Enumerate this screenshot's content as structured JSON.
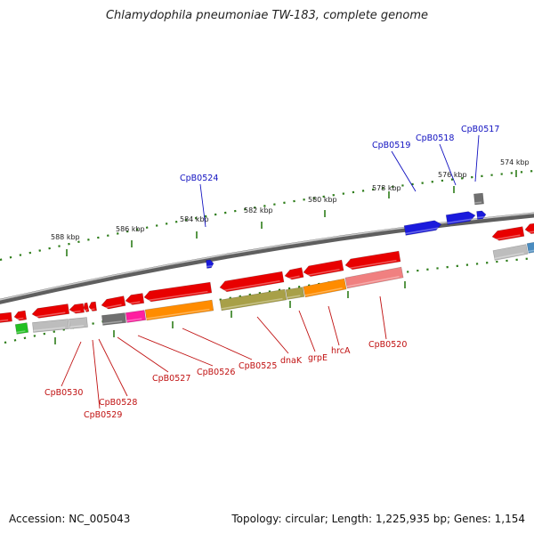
{
  "title": "Chlamydophila pneumoniae TW-183, complete genome",
  "footer": {
    "accession": "Accession: NC_005043",
    "summary": "Topology: circular; Length: 1,225,935 bp; Genes: 1,154"
  },
  "colors": {
    "backbone": "#8a8a8a",
    "ruler": "#2e7d1a",
    "red": "#e80000",
    "blue": "#1a1adc",
    "orange": "#ff8c00",
    "olive": "#a8a048",
    "gray": "#707070",
    "lightgray": "#bdbdbd",
    "pink": "#ff1fa0",
    "salmon": "#f08080",
    "green": "#22c022",
    "steel": "#4a8cc0",
    "label_top": "#1010c0",
    "label_bottom": "#c01010"
  },
  "ruler": {
    "ticks": [
      {
        "label": "574 kbp"
      },
      {
        "label": "576 kbp"
      },
      {
        "label": "578 kbp"
      },
      {
        "label": "580 kbp"
      },
      {
        "label": "582 kbp"
      },
      {
        "label": "584 kbp"
      },
      {
        "label": "586 kbp"
      },
      {
        "label": "588 kbp"
      }
    ]
  },
  "genes_top": [
    {
      "name": "CpB0517"
    },
    {
      "name": "CpB0518"
    },
    {
      "name": "CpB0519"
    },
    {
      "name": "CpB0524"
    }
  ],
  "genes_bottom": [
    {
      "name": "CpB0520"
    },
    {
      "name": "hrcA"
    },
    {
      "name": "grpE"
    },
    {
      "name": "dnaK"
    },
    {
      "name": "CpB0525"
    },
    {
      "name": "CpB0526"
    },
    {
      "name": "CpB0527"
    },
    {
      "name": "CpB0528"
    },
    {
      "name": "CpB0529"
    },
    {
      "name": "CpB0530"
    }
  ]
}
